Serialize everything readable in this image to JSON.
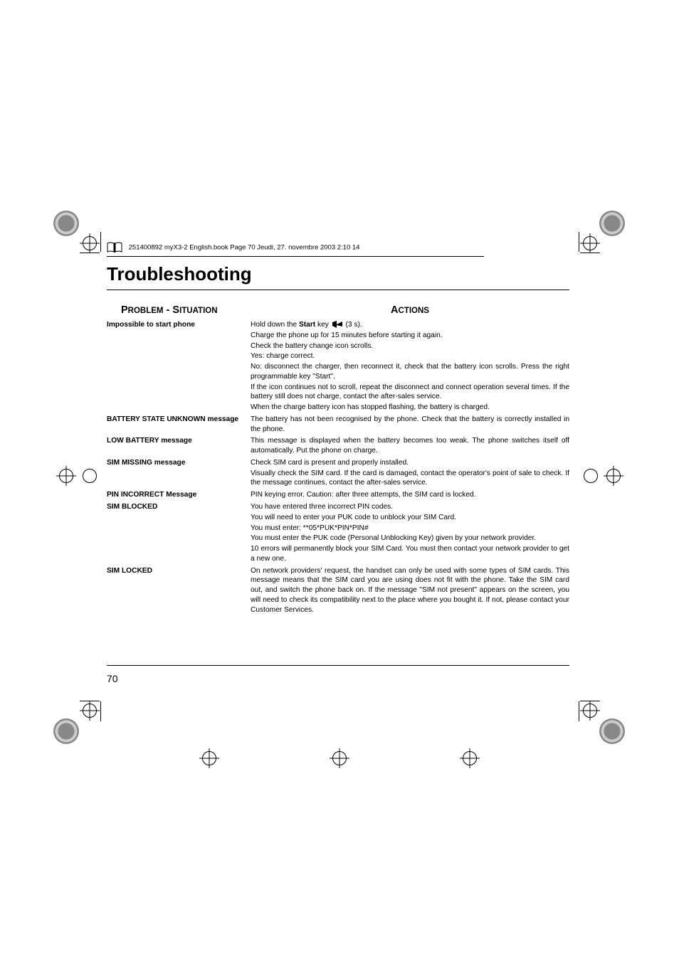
{
  "header": {
    "text": "251400892 myX3-2 English.book  Page 70  Jeudi, 27. novembre 2003  2:10 14"
  },
  "chapter_title": "Troubleshooting",
  "columns": {
    "left_head": "Problem - Situation",
    "right_head": "Actions"
  },
  "rows": [
    {
      "problem": "Impossible to start phone",
      "actions": [
        {
          "type": "start_key",
          "prefix": "Hold down the ",
          "bold": "Start",
          "mid": " key ",
          "suffix": " (3 s)."
        },
        {
          "text": "Charge the phone up for 15 minutes before starting it again."
        },
        {
          "text": "Check the battery change icon scrolls."
        },
        {
          "text": "Yes: charge correct."
        },
        {
          "text": "No: disconnect the charger, then reconnect it, check that the battery icon scrolls. Press the right programmable key \"Start\".",
          "justify": true
        },
        {
          "text": "If the icon continues not to scroll, repeat the disconnect and connect operation several times. If the battery still does not charge, contact the after-sales service.",
          "justify": true
        },
        {
          "text": "When the charge battery icon has stopped flashing, the battery is charged."
        }
      ]
    },
    {
      "problem": "BATTERY STATE UNKNOWN message",
      "actions": [
        {
          "text": "The battery has not been recognised by the phone. Check that the battery is correctly installed in the phone.",
          "justify": true
        }
      ]
    },
    {
      "problem": "LOW BATTERY message",
      "actions": [
        {
          "text": "This message is displayed when the battery becomes too weak. The phone switches itself off automatically. Put the phone on charge.",
          "justify": true
        }
      ]
    },
    {
      "problem": "SIM MISSING message",
      "actions": [
        {
          "text": "Check SIM card is present and properly installed."
        },
        {
          "text": "Visually check the SIM card. If the card is damaged, contact the operator's point of sale to check. If the message continues, contact the after-sales service.",
          "justify": true
        }
      ]
    },
    {
      "problem": "PIN INCORRECT Message",
      "actions": [
        {
          "text": "PIN keying error. Caution: after three attempts, the SIM card is locked."
        }
      ]
    },
    {
      "problem": "SIM BLOCKED",
      "actions": [
        {
          "text": "You have entered three incorrect PIN codes."
        },
        {
          "text": "You will need to enter your PUK code to unblock your SIM Card."
        },
        {
          "text": "You must enter: **05*PUK*PIN*PIN#"
        },
        {
          "text": "You must enter the PUK code (Personal Unblocking Key) given by your network provider.",
          "justify": true
        },
        {
          "text": "10 errors will permanently block your SIM Card. You must then contact your network provider to get a new one.",
          "justify": true
        }
      ]
    },
    {
      "problem": "SIM LOCKED",
      "actions": [
        {
          "text": "On network providers' request, the handset can only be used with some types of SIM cards. This message means that the SIM card you are using does not fit with the phone. Take the SIM card out, and switch the phone back on. If the message \"SIM not present\" appears on the screen, you will need to check its compatibility next to the place where you bought it. If not, please contact your Customer Services.",
          "justify": true
        }
      ]
    }
  ],
  "page_number": "70",
  "style": {
    "bg": "#ffffff",
    "text": "#000000",
    "title_fontsize": 26,
    "body_fontsize": 10.2,
    "header_fontsize": 9.5
  }
}
